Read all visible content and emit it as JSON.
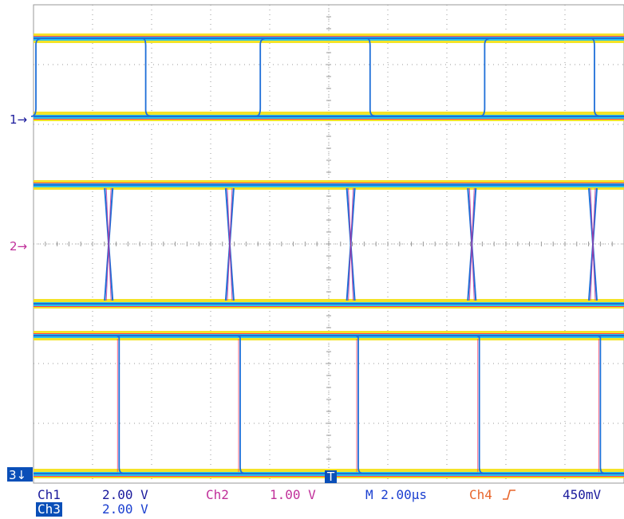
{
  "markers": {
    "ch1": "1→",
    "ch2": "2→",
    "ch3": "3↓",
    "trigger": "T"
  },
  "readout": {
    "ch1_label": "Ch1",
    "ch1_scale": "2.00 V",
    "ch2_label": "Ch2",
    "ch2_scale": "1.00 V",
    "timebase": "M 2.00µs",
    "trigger_source": "Ch4",
    "trigger_slope_icon": "rising-edge-icon",
    "trigger_level": "450mV",
    "ch3_label": "Ch3",
    "ch3_scale": "2.00 V"
  },
  "colors": {
    "ch1_text": "#1a1a9c",
    "ch2_text": "#c0309a",
    "ch3_text": "#1a3fd0",
    "ch4_text": "#e8652a",
    "timebase_text": "#1a3fd0",
    "trace_blue": "#1e6fd8",
    "trace_cyan": "#29c4e8",
    "trace_yellow": "#f3e21c",
    "trace_red": "#ff2a5a",
    "trace_magenta": "#c0309a",
    "grid": "#9a9a9a"
  },
  "waveforms": {
    "ch1_rising_edges_div": [
      0.0,
      3.8,
      7.6
    ],
    "ch1_falling_edges_div": [
      1.9,
      5.7,
      9.5
    ],
    "ch2_crossings_div": [
      2.55,
      6.35
    ],
    "ch3_falling_edges_div": [
      2.8,
      6.6
    ],
    "ch3_rising_edges_div": [
      4.7,
      8.5
    ]
  }
}
